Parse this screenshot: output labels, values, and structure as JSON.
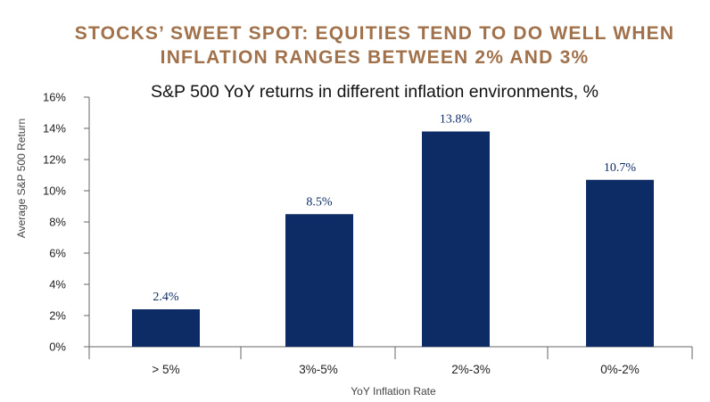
{
  "headline": {
    "line1": "STOCKS’ SWEET SPOT: EQUITIES TEND TO DO WELL WHEN",
    "line2": "INFLATION RANGES BETWEEN 2% AND 3%"
  },
  "colors": {
    "headline": "#a0714a",
    "bar": "#0d2c65",
    "axis": "#666666",
    "data_label": "#0d2c65"
  },
  "chart_data": {
    "type": "bar",
    "title": "S&P 500 YoY returns in different inflation environments, %",
    "xlabel": "YoY Inflation Rate",
    "ylabel": "Average S&P 500 Return",
    "categories": [
      "> 5%",
      "3%-5%",
      "2%-3%",
      "0%-2%"
    ],
    "values": [
      2.4,
      8.5,
      13.8,
      10.7
    ],
    "data_labels": [
      "2.4%",
      "8.5%",
      "13.8%",
      "10.7%"
    ],
    "ylim": [
      0,
      16
    ],
    "yticks": [
      0,
      2,
      4,
      6,
      8,
      10,
      12,
      14,
      16
    ],
    "ytick_labels": [
      "0%",
      "2%",
      "4%",
      "6%",
      "8%",
      "10%",
      "12%",
      "14%",
      "16%"
    ],
    "grid": false,
    "legend": "none"
  }
}
